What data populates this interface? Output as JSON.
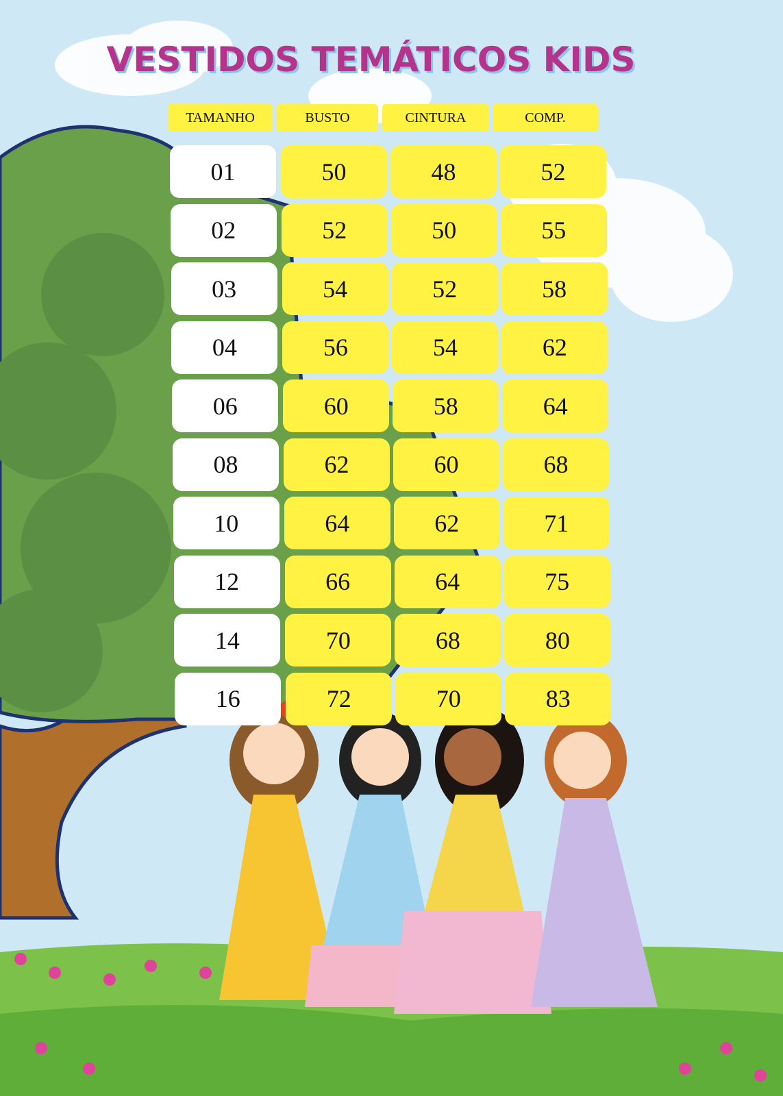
{
  "title": "VESTIDOS TEMÁTICOS KIDS",
  "colors": {
    "title": "#b5338a",
    "cell_yellow": "#fff243",
    "sky": "#cfe8f6",
    "tree": "#6aa04a",
    "grass": "#7cc24a"
  },
  "table": {
    "headers": [
      "TAMANHO",
      "BUSTO",
      "CINTURA",
      "COMP."
    ],
    "rows": [
      [
        "01",
        "50",
        "48",
        "52"
      ],
      [
        "02",
        "52",
        "50",
        "55"
      ],
      [
        "03",
        "54",
        "52",
        "58"
      ],
      [
        "04",
        "56",
        "54",
        "62"
      ],
      [
        "06",
        "60",
        "58",
        "64"
      ],
      [
        "08",
        "62",
        "60",
        "68"
      ],
      [
        "10",
        "64",
        "62",
        "71"
      ],
      [
        "12",
        "66",
        "64",
        "75"
      ],
      [
        "14",
        "70",
        "68",
        "80"
      ],
      [
        "16",
        "72",
        "70",
        "83"
      ]
    ]
  }
}
